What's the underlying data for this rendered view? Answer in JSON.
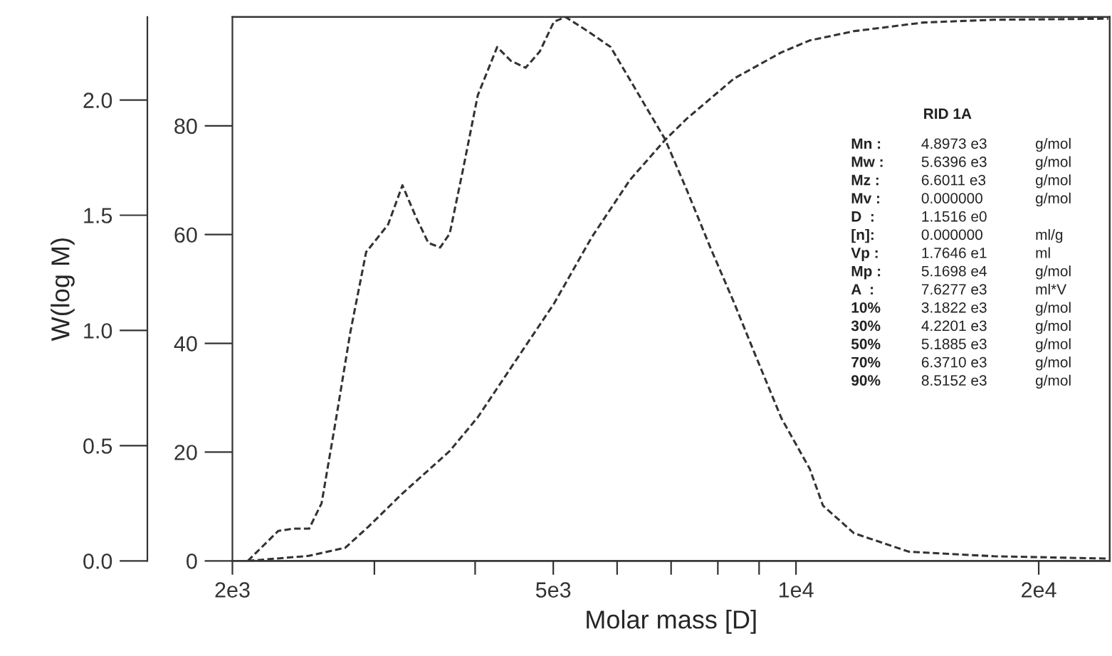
{
  "chart_data": {
    "type": "line",
    "xlabel": "Molar mass [D]",
    "ylabel": "W(log M)",
    "log": "x",
    "grid": false,
    "marker": "none",
    "line_style": "dashed",
    "xlim": [
      2000,
      24500
    ],
    "xticks": [
      {
        "value": 2000,
        "label": "2e3"
      },
      {
        "value": 3000,
        "label": null
      },
      {
        "value": 4000,
        "label": null
      },
      {
        "value": 5000,
        "label": "5e3"
      },
      {
        "value": 6000,
        "label": null
      },
      {
        "value": 7000,
        "label": null
      },
      {
        "value": 8000,
        "label": null
      },
      {
        "value": 9000,
        "label": null
      },
      {
        "value": 10000,
        "label": "1e4"
      },
      {
        "value": 20000,
        "label": "2e4"
      }
    ],
    "ylim": [
      0,
      2.36
    ],
    "yticks": [
      {
        "value": 0,
        "label": "0.0"
      },
      {
        "value": 0.5,
        "label": "0.5"
      },
      {
        "value": 1,
        "label": "1.0"
      },
      {
        "value": 1.5,
        "label": "1.5"
      },
      {
        "value": 2,
        "label": "2.0"
      }
    ],
    "y2lim": [
      0,
      100
    ],
    "y2ticks": [
      0,
      20,
      40,
      60,
      80
    ],
    "series": [
      {
        "color": "#333333",
        "x": [
          2090,
          2280,
          2380,
          2490,
          2580,
          2690,
          2800,
          2930,
          3040,
          3120,
          3250,
          3380,
          3500,
          3620,
          3720,
          3870,
          4030,
          4260,
          4430,
          4620,
          4810,
          5010,
          5180,
          5510,
          5890,
          6390,
          6880,
          7320,
          7830,
          8380,
          8960,
          9590,
          10400,
          10800,
          11800,
          13800,
          17600,
          24400
        ],
        "values": [
          0,
          0.13,
          0.14,
          0.14,
          0.25,
          0.62,
          0.99,
          1.34,
          1.41,
          1.46,
          1.63,
          1.49,
          1.38,
          1.36,
          1.42,
          1.71,
          2.02,
          2.23,
          2.17,
          2.14,
          2.21,
          2.34,
          2.36,
          2.3,
          2.23,
          2.02,
          1.83,
          1.61,
          1.36,
          1.12,
          0.87,
          0.62,
          0.4,
          0.24,
          0.12,
          0.04,
          0.02,
          0.01
        ]
      },
      {
        "color": "#333333",
        "axis": "y2",
        "x": [
          2090,
          2480,
          2760,
          2950,
          3250,
          3720,
          4030,
          4490,
          5010,
          5580,
          6220,
          6880,
          7320,
          8380,
          9590,
          10400,
          11800,
          14400,
          17600,
          24400
        ],
        "values": [
          0,
          0.9,
          2.4,
          6.3,
          12.4,
          20.2,
          26.4,
          36.8,
          47.3,
          59.5,
          70.0,
          77.4,
          81.3,
          88.7,
          93.5,
          95.7,
          97.4,
          99.0,
          99.5,
          99.7
        ]
      }
    ],
    "annotations": [
      "RID 1A",
      "Mn :   4.8973 e3   g/mol",
      "Mw :   5.6396 e3   g/mol",
      "Mz :   6.6011 e3   g/mol",
      "Mv :   0.000000   g/mol",
      "D  :   1.1516 e0",
      "[n]:   0.000000   ml/g",
      "Vp :   1.7646 e1   ml",
      "Mp :   5.1698 e4   g/mol",
      "A  :   7.6277 e3   ml*V",
      "10%   3.1822 e3   g/mol",
      "30%   4.2201 e3   g/mol",
      "50%   5.1885 e3   g/mol",
      "70%   6.3710 e3   g/mol",
      "90%   8.5152 e3   g/mol"
    ]
  }
}
